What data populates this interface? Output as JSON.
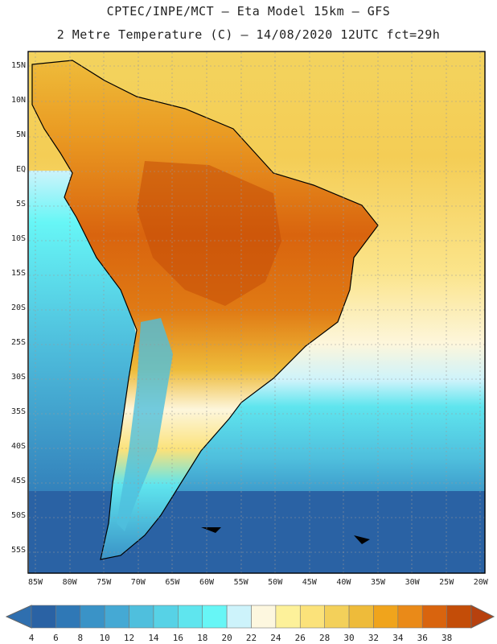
{
  "header": {
    "line1": "CPTEC/INPE/MCT –  Eta Model 15km – GFS",
    "line2": "2 Metre Temperature (C) – 14/08/2020 12UTC fct=29h"
  },
  "map": {
    "lat_labels": [
      "15N",
      "10N",
      "5N",
      "EQ",
      "5S",
      "10S",
      "15S",
      "20S",
      "25S",
      "30S",
      "35S",
      "40S",
      "45S",
      "50S",
      "55S"
    ],
    "lon_labels": [
      "85W",
      "80W",
      "75W",
      "70W",
      "65W",
      "60W",
      "55W",
      "50W",
      "45W",
      "40W",
      "35W",
      "30W",
      "25W",
      "20W"
    ]
  },
  "colorbar": {
    "labels": [
      "4",
      "6",
      "8",
      "10",
      "12",
      "14",
      "16",
      "18",
      "20",
      "22",
      "24",
      "26",
      "28",
      "30",
      "32",
      "34",
      "36",
      "38"
    ],
    "colors": [
      "#2a62a4",
      "#2f78b6",
      "#3a93c7",
      "#45a9d4",
      "#4fbfdd",
      "#57d2e6",
      "#5fe5ee",
      "#67f6f6",
      "#cdf3fb",
      "#fdf7df",
      "#fdf19a",
      "#fbe27a",
      "#f3d05a",
      "#eebb3a",
      "#f0a41c",
      "#ea8a18",
      "#d9640e",
      "#c44d08"
    ],
    "low_color": "#2f6faf",
    "high_color": "#b7410e"
  }
}
